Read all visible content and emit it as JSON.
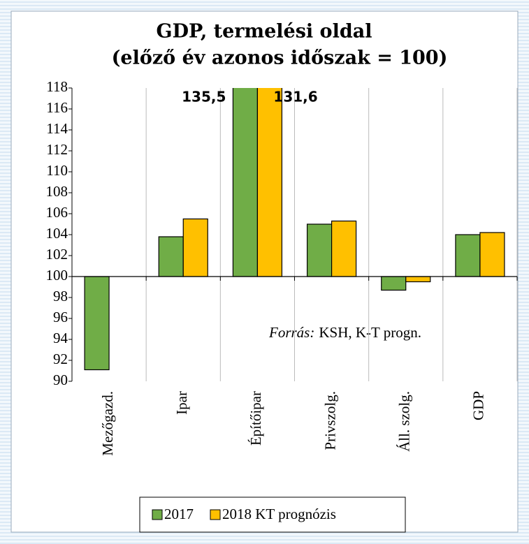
{
  "chart_data": {
    "type": "bar",
    "title": [
      "GDP, termelési oldal",
      "(előző év azonos időszak = 100)"
    ],
    "categories": [
      "Mezőgazd.",
      "Ipar",
      "Építőipar",
      "Privszolg.",
      "Áll. szolg.",
      "GDP"
    ],
    "series": [
      {
        "name": "2017",
        "color": "#70ad47",
        "values": [
          91.1,
          103.8,
          135.5,
          105.0,
          98.7,
          104.0
        ],
        "value_labels": [
          null,
          null,
          "135,5",
          null,
          null,
          null
        ]
      },
      {
        "name": "2018 KT prognózis",
        "color": "#ffc000",
        "values": [
          null,
          105.5,
          131.6,
          105.3,
          99.5,
          104.2
        ],
        "value_labels": [
          null,
          null,
          "131,6",
          null,
          null,
          null
        ]
      }
    ],
    "baseline": 100,
    "ylim": [
      90,
      118
    ],
    "yticks": [
      90,
      92,
      94,
      96,
      98,
      100,
      102,
      104,
      106,
      108,
      110,
      112,
      114,
      116,
      118
    ],
    "annotation": {
      "italic": "Forrás:",
      "text": "KSH, K-T progn."
    },
    "legend": "bottom"
  }
}
